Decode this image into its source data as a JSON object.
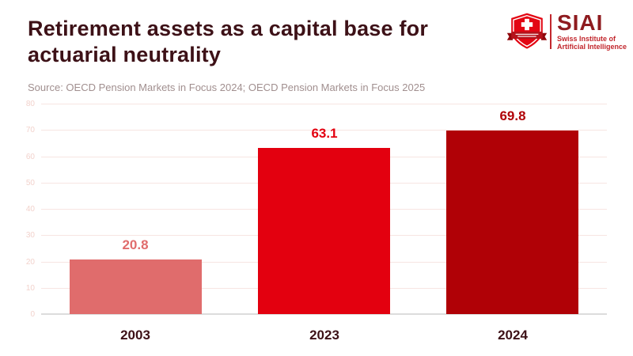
{
  "page": {
    "title": "Retirement assets as a capital base for actuarial neutrality",
    "source": "Source: OECD Pension Markets in Focus 2024; OECD Pension Markets in Focus 2025"
  },
  "logo": {
    "wordmark": "SIAI",
    "tagline_line1": "Swiss Institute of",
    "tagline_line2": "Artificial Intelligence",
    "shield_icon": "swiss-shield-icon"
  },
  "chart_data": {
    "type": "bar",
    "categories": [
      "2003",
      "2023",
      "2024"
    ],
    "values": [
      20.8,
      63.1,
      69.8
    ],
    "value_labels": [
      "20.8",
      "63.1",
      "69.8"
    ],
    "bar_colors": [
      "#e06c6c",
      "#e3000f",
      "#b00106"
    ],
    "label_colors": [
      "#e06c6c",
      "#e3000f",
      "#b00106"
    ],
    "title": "Retirement assets as a capital base for actuarial neutrality",
    "xlabel": "",
    "ylabel": "",
    "ylim": [
      0,
      80
    ],
    "ytick_interval": 10,
    "ytick_labels": [
      "0",
      "10",
      "20",
      "30",
      "40",
      "50",
      "60",
      "70",
      "80"
    ],
    "grid": true,
    "legend": false
  },
  "colors": {
    "title": "#3d1117",
    "source_text": "#a18f8f",
    "grid": "#f7e5e2",
    "tick_label": "#f2d2cc",
    "axis_line": "#dcdcdc",
    "brand_red": "#c2272d",
    "brand_bright_red": "#e3000f",
    "brand_dark_red": "#8e1b1f"
  }
}
